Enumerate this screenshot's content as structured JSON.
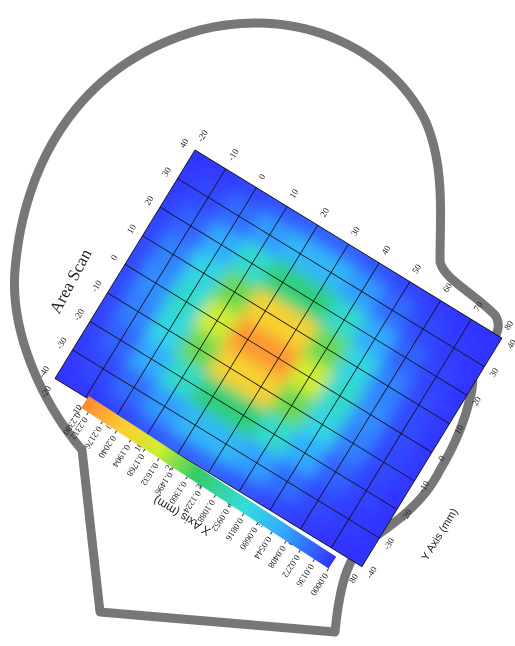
{
  "chart_data": {
    "type": "heatmap",
    "title": "Area Scan",
    "x_label": "X Axis (mm)",
    "y_label": "Y Axis (mm)",
    "x": [
      -20,
      -10,
      0,
      10,
      20,
      30,
      40,
      50,
      60,
      70,
      80
    ],
    "y": [
      40,
      30,
      20,
      10,
      0,
      -10,
      -20,
      -30,
      -40
    ],
    "values": [
      [
        0.001,
        0.003,
        0.008,
        0.014,
        0.019,
        0.019,
        0.014,
        0.008,
        0.003,
        0.001,
        0.0
      ],
      [
        0.003,
        0.009,
        0.023,
        0.042,
        0.057,
        0.057,
        0.042,
        0.023,
        0.009,
        0.003,
        0.001
      ],
      [
        0.006,
        0.019,
        0.049,
        0.091,
        0.123,
        0.123,
        0.091,
        0.049,
        0.019,
        0.006,
        0.001
      ],
      [
        0.009,
        0.031,
        0.078,
        0.144,
        0.196,
        0.196,
        0.144,
        0.078,
        0.031,
        0.009,
        0.002
      ],
      [
        0.01,
        0.036,
        0.091,
        0.168,
        0.229,
        0.229,
        0.168,
        0.091,
        0.036,
        0.01,
        0.002
      ],
      [
        0.009,
        0.031,
        0.078,
        0.144,
        0.196,
        0.196,
        0.144,
        0.078,
        0.031,
        0.009,
        0.002
      ],
      [
        0.006,
        0.019,
        0.049,
        0.091,
        0.123,
        0.123,
        0.091,
        0.049,
        0.019,
        0.006,
        0.001
      ],
      [
        0.003,
        0.009,
        0.023,
        0.042,
        0.057,
        0.057,
        0.042,
        0.023,
        0.009,
        0.003,
        0.001
      ],
      [
        0.001,
        0.003,
        0.008,
        0.014,
        0.019,
        0.019,
        0.014,
        0.008,
        0.003,
        0.001,
        0.0
      ]
    ],
    "xlim": [
      -20,
      80
    ],
    "ylim": [
      -40,
      40
    ],
    "xticks": [
      -20,
      -10,
      0,
      10,
      20,
      30,
      40,
      50,
      60,
      70,
      80
    ],
    "yticks": [
      40,
      30,
      20,
      10,
      0,
      -10,
      -20,
      -30,
      -40
    ],
    "grid": true,
    "colorbar_ticks": [
      {
        "value": 0.238,
        "label": "0.2380"
      },
      0.2312,
      0.2176,
      {
        "value": 0.204,
        "label": "0.2040"
      },
      0.1904,
      0.1768,
      0.1632,
      0.1496,
      {
        "value": 0.136,
        "label": "0.1360"
      },
      0.1224,
      0.1088,
      0.0952,
      0.0816,
      {
        "value": 0.068,
        "label": "0.0680"
      },
      0.0544,
      0.0408,
      0.0272,
      0.0136,
      {
        "value": 0,
        "label": "0.0000"
      }
    ]
  }
}
